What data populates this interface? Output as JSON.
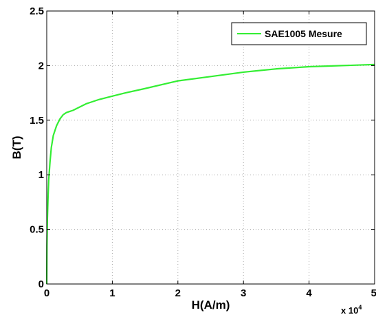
{
  "chart_data": {
    "type": "line",
    "xlabel": "H(A/m)",
    "ylabel": "B(T)",
    "x_multiplier": {
      "base": "x 10",
      "exponent": "4"
    },
    "xlim": [
      0,
      5
    ],
    "ylim": [
      0,
      2.5
    ],
    "x_ticks": [
      "0",
      "1",
      "2",
      "3",
      "4",
      "5"
    ],
    "y_ticks": [
      "0",
      "0.5",
      "1",
      "1.5",
      "2",
      "2.5"
    ],
    "grid": true,
    "legend_position": "top-right",
    "colors": {
      "series": "#33ee33",
      "grid": "#aaaaaa",
      "axes": "#000000"
    },
    "series": [
      {
        "name": "SAE1005 Mesure",
        "x": [
          0,
          0.003,
          0.01,
          0.02,
          0.03,
          0.05,
          0.07,
          0.1,
          0.15,
          0.2,
          0.25,
          0.3,
          0.35,
          0.4,
          0.5,
          0.6,
          0.8,
          1.0,
          1.2,
          1.5,
          2.0,
          2.5,
          3.0,
          3.5,
          4.0,
          4.5,
          5.0
        ],
        "y": [
          0,
          0.35,
          0.6,
          0.8,
          0.95,
          1.12,
          1.25,
          1.36,
          1.45,
          1.51,
          1.55,
          1.57,
          1.58,
          1.59,
          1.62,
          1.65,
          1.69,
          1.72,
          1.75,
          1.79,
          1.86,
          1.9,
          1.94,
          1.97,
          1.99,
          2.0,
          2.01
        ]
      }
    ]
  }
}
